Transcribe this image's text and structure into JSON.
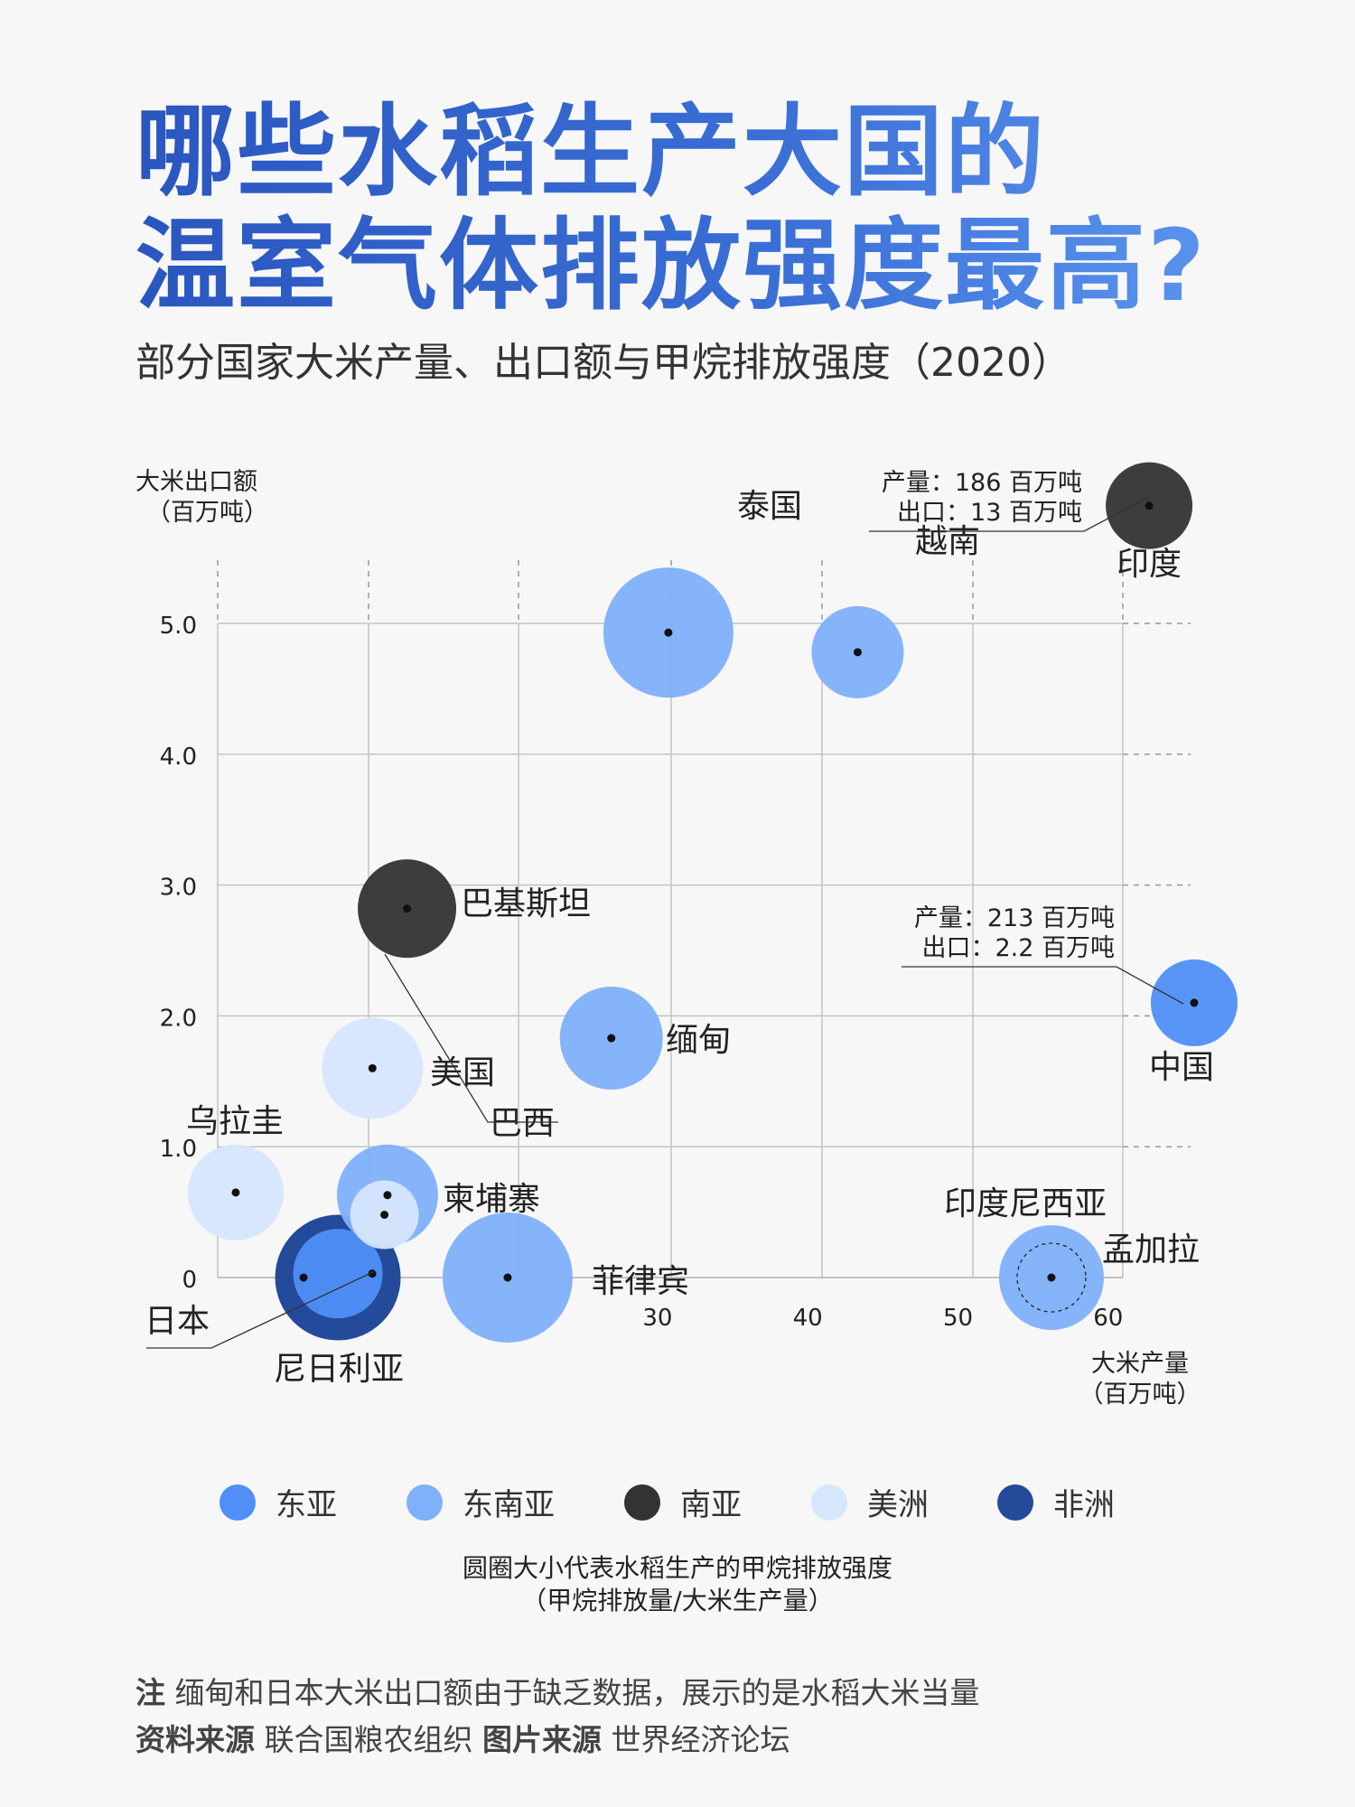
{
  "title": {
    "line1": "哪些水稻生产大国的",
    "line2": "温室气体排放强度最高?"
  },
  "subtitle": "部分国家大米产量、出口额与甲烷排放强度（2020）",
  "colors": {
    "east_asia": "#4f8ff7",
    "southeast_asia": "#7fb0fb",
    "south_asia": "#333333",
    "americas": "#d6e6fd",
    "africa": "#244a9a"
  },
  "chart_data": {
    "type": "scatter",
    "ylabel": [
      "大米出口额",
      "（百万吨）"
    ],
    "xlabel": [
      "大米产量",
      "（百万吨）"
    ],
    "x_ticks": [
      "30",
      "40",
      "50",
      "60"
    ],
    "y_ticks": [
      "0",
      "1.0",
      "2.0",
      "3.0",
      "4.0",
      "5.0"
    ],
    "xlim": [
      0,
      65
    ],
    "ylim": [
      0,
      5.6
    ],
    "grid": true,
    "points": [
      {
        "name": "泰国",
        "x": 30.0,
        "y": 4.93,
        "size": 1.0,
        "region": "southeast_asia"
      },
      {
        "name": "越南",
        "x": 42.6,
        "y": 4.78,
        "size": 0.58,
        "region": "southeast_asia"
      },
      {
        "name": "巴基斯坦",
        "x": 12.6,
        "y": 2.82,
        "size": 0.65,
        "region": "south_asia"
      },
      {
        "name": "缅甸",
        "x": 26.2,
        "y": 1.83,
        "size": 0.7,
        "region": "southeast_asia"
      },
      {
        "name": "美国",
        "x": 10.3,
        "y": 1.6,
        "size": 0.68,
        "region": "americas"
      },
      {
        "name": "乌拉圭",
        "x": 1.2,
        "y": 0.65,
        "size": 0.62,
        "region": "americas"
      },
      {
        "name": "柬埔寨",
        "x": 11.3,
        "y": 0.63,
        "size": 0.68,
        "region": "southeast_asia"
      },
      {
        "name": "巴西",
        "x": 11.1,
        "y": 0.48,
        "size": 0.32,
        "region": "americas"
      },
      {
        "name": "日本",
        "x": 8.0,
        "y": 0.03,
        "size": 0.55,
        "region": "east_asia"
      },
      {
        "name": "尼日利亚",
        "x": 8.0,
        "y": 0.0,
        "size": 0.95,
        "region": "africa"
      },
      {
        "name": "菲律宾",
        "x": 19.3,
        "y": 0.0,
        "size": 1.0,
        "region": "southeast_asia"
      },
      {
        "name": "孟加拉",
        "x": 55.5,
        "y": 0.0,
        "size": 0.68,
        "region": "south_asia"
      },
      {
        "name": "印度尼西亚",
        "x": 55.5,
        "y": 0.0,
        "size": 0.72,
        "region": "southeast_asia"
      },
      {
        "name": "中国",
        "x": 65.0,
        "y": 2.1,
        "size": 0.52,
        "region": "east_asia"
      },
      {
        "name": "印度",
        "x": 62.0,
        "y": 5.9,
        "size": 0.52,
        "region": "south_asia"
      }
    ],
    "annotations": [
      {
        "target": "印度",
        "line1": "产量：186 百万吨",
        "line2": "出口：13 百万吨"
      },
      {
        "target": "中国",
        "line1": "产量：213 百万吨",
        "line2": "出口：2.2 百万吨"
      }
    ]
  },
  "legend": [
    {
      "label": "东亚",
      "region": "east_asia"
    },
    {
      "label": "东南亚",
      "region": "southeast_asia"
    },
    {
      "label": "南亚",
      "region": "south_asia"
    },
    {
      "label": "美洲",
      "region": "americas"
    },
    {
      "label": "非洲",
      "region": "africa"
    }
  ],
  "size_note": {
    "line1": "圆圈大小代表水稻生产的甲烷排放强度",
    "line2": "（甲烷排放量/大米生产量）"
  },
  "footer": {
    "note_label": "注",
    "note_text": "缅甸和日本大米出口额由于缺乏数据，展示的是水稻大米当量",
    "source_label": "资料来源",
    "source_text": "联合国粮农组织",
    "image_source_label": "图片来源",
    "image_source_text": "世界经济论坛"
  }
}
